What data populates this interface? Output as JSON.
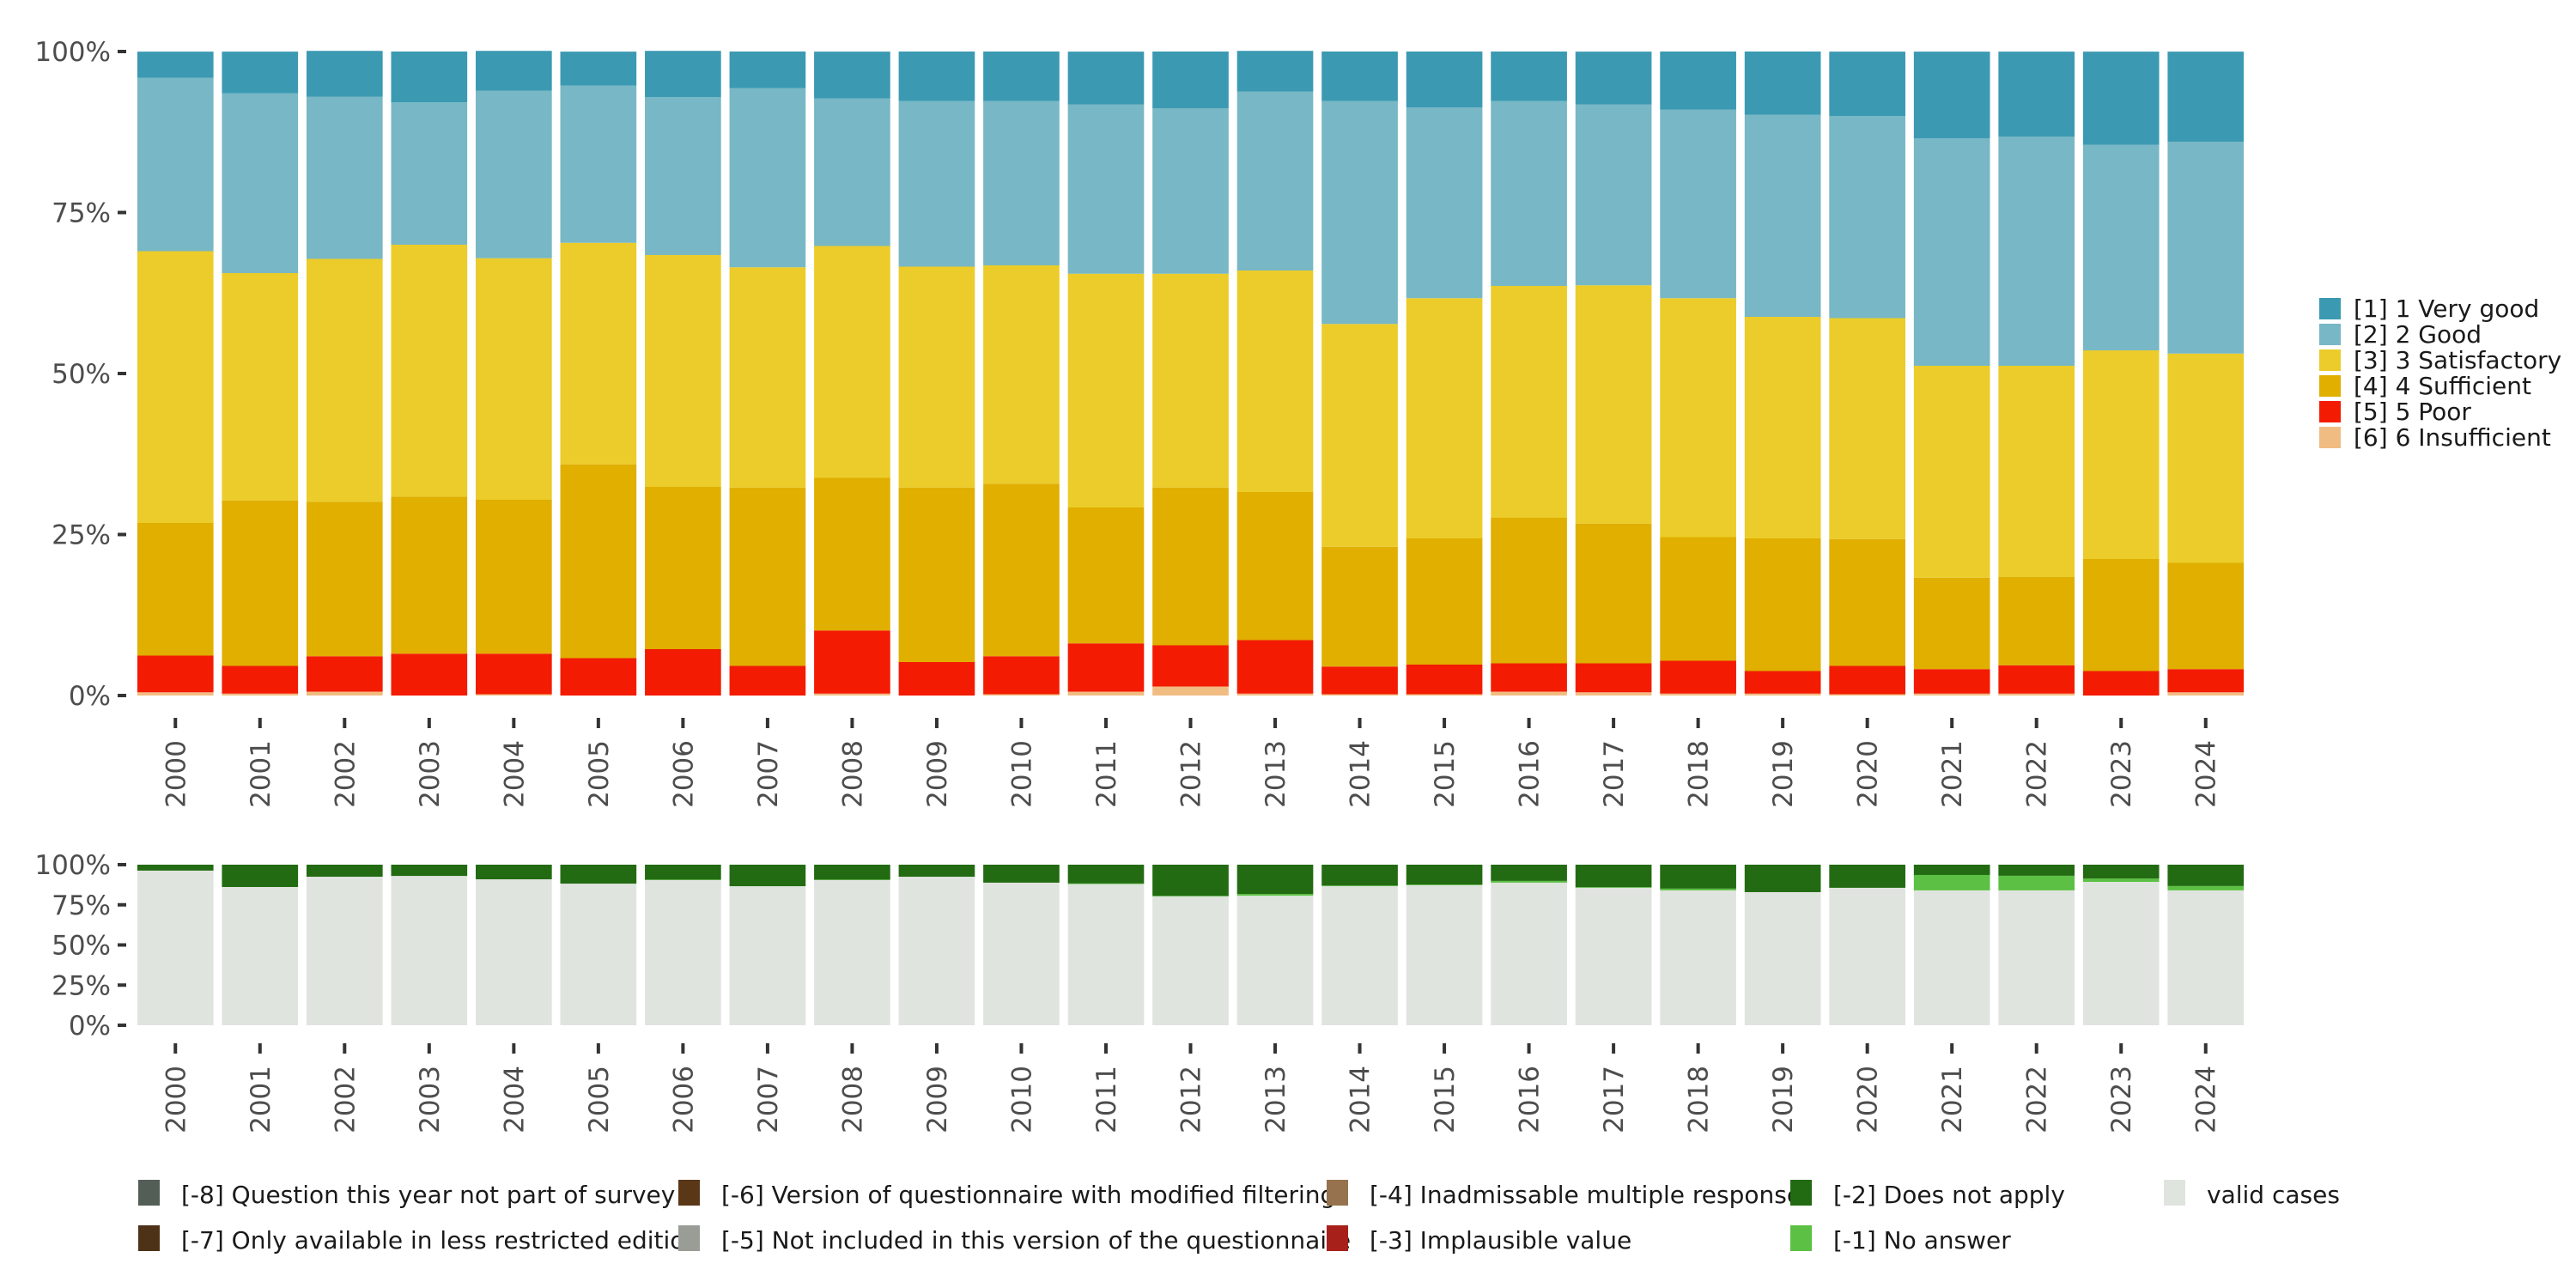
{
  "chart_data": [
    {
      "type": "bar",
      "stacked": true,
      "title": "",
      "xlabel": "",
      "ylabel": "",
      "ylim": [
        0,
        100
      ],
      "yticks": [
        "0%",
        "25%",
        "50%",
        "75%",
        "100%"
      ],
      "ytick_values": [
        0,
        25,
        50,
        75,
        100
      ],
      "categories": [
        "2000",
        "2001",
        "2002",
        "2003",
        "2004",
        "2005",
        "2006",
        "2007",
        "2008",
        "2009",
        "2010",
        "2011",
        "2012",
        "2013",
        "2014",
        "2015",
        "2016",
        "2017",
        "2018",
        "2019",
        "2020",
        "2021",
        "2022",
        "2023",
        "2024"
      ],
      "legend_position": "right",
      "series": [
        {
          "name": "[6] 6 Insufficient",
          "color": "#F1BC82",
          "values": [
            0.5,
            0.3,
            0.6,
            0,
            0.2,
            0,
            0,
            0,
            0.3,
            0,
            0.2,
            0.6,
            1.4,
            0.3,
            0.2,
            0.2,
            0.6,
            0.5,
            0.3,
            0.3,
            0.2,
            0.3,
            0.3,
            0,
            0.5
          ]
        },
        {
          "name": "[5] 5 Poor",
          "color": "#F31C03",
          "values": [
            5.7,
            4.3,
            5.5,
            6.5,
            6.3,
            5.8,
            7.2,
            4.6,
            9.8,
            5.2,
            5.9,
            7.5,
            6.4,
            8.3,
            4.3,
            4.6,
            4.4,
            4.5,
            5.1,
            3.5,
            4.4,
            3.8,
            4.4,
            3.8,
            3.6
          ]
        },
        {
          "name": "[4] 4 Sufficient",
          "color": "#E0AF00",
          "values": [
            20.6,
            25.7,
            24.0,
            24.4,
            23.9,
            30.1,
            25.2,
            27.7,
            23.7,
            27.1,
            26.8,
            21.1,
            24.5,
            23.0,
            18.6,
            19.6,
            22.6,
            21.7,
            19.2,
            20.6,
            19.7,
            14.2,
            13.7,
            17.4,
            16.5
          ]
        },
        {
          "name": "[3] 3 Satisfactory",
          "color": "#EBCC2A",
          "values": [
            42.2,
            35.3,
            37.7,
            39.1,
            37.5,
            34.4,
            36.0,
            34.2,
            36.0,
            34.3,
            33.9,
            36.3,
            33.2,
            34.4,
            34.6,
            37.3,
            36.0,
            37.0,
            37.1,
            34.4,
            34.3,
            32.9,
            32.8,
            32.4,
            32.5
          ]
        },
        {
          "name": "[2] 2 Good",
          "color": "#78B7C5",
          "values": [
            26.9,
            27.9,
            25.2,
            22.1,
            26.0,
            24.4,
            24.5,
            27.8,
            22.9,
            25.7,
            25.5,
            26.3,
            25.7,
            27.8,
            34.6,
            29.6,
            28.7,
            28.1,
            29.3,
            31.4,
            31.4,
            35.3,
            35.6,
            31.9,
            32.9
          ]
        },
        {
          "name": "[1] 1 Very good",
          "color": "#3B9AB2",
          "values": [
            4.0,
            6.4,
            7.1,
            7.9,
            6.2,
            5.2,
            7.2,
            5.7,
            7.2,
            7.7,
            7.7,
            8.1,
            8.8,
            6.3,
            7.7,
            8.7,
            7.7,
            8.1,
            9.0,
            9.8,
            9.9,
            13.4,
            13.1,
            14.4,
            13.9
          ]
        }
      ],
      "legend": [
        {
          "label": "[1] 1 Very good",
          "color": "#3B9AB2"
        },
        {
          "label": "[2] 2 Good",
          "color": "#78B7C5"
        },
        {
          "label": "[3] 3 Satisfactory",
          "color": "#EBCC2A"
        },
        {
          "label": "[4] 4 Sufficient",
          "color": "#E0AF00"
        },
        {
          "label": "[5] 5 Poor",
          "color": "#F31C03"
        },
        {
          "label": "[6] 6 Insufficient",
          "color": "#F1BC82"
        }
      ]
    },
    {
      "type": "bar",
      "stacked": true,
      "title": "",
      "xlabel": "",
      "ylabel": "",
      "ylim": [
        0,
        100
      ],
      "yticks": [
        "0%",
        "25%",
        "50%",
        "75%",
        "100%"
      ],
      "ytick_values": [
        0,
        25,
        50,
        75,
        100
      ],
      "categories": [
        "2000",
        "2001",
        "2002",
        "2003",
        "2004",
        "2005",
        "2006",
        "2007",
        "2008",
        "2009",
        "2010",
        "2011",
        "2012",
        "2013",
        "2014",
        "2015",
        "2016",
        "2017",
        "2018",
        "2019",
        "2020",
        "2021",
        "2022",
        "2023",
        "2024"
      ],
      "legend_position": "bottom",
      "series": [
        {
          "name": "valid cases",
          "color": "#E0E4DF",
          "values": [
            96.3,
            86.1,
            92.5,
            93.0,
            90.9,
            88.2,
            90.4,
            86.6,
            90.4,
            92.5,
            88.8,
            87.9,
            80.2,
            80.7,
            86.6,
            87.2,
            88.8,
            85.6,
            84.0,
            82.9,
            85.6,
            84.0,
            84.0,
            89.3,
            84.0
          ]
        },
        {
          "name": "[-1] No answer",
          "color": "#5BC043",
          "values": [
            0,
            0,
            0,
            0,
            0,
            0,
            0.3,
            0,
            0.3,
            0,
            0,
            0.4,
            0.4,
            1.1,
            0.4,
            0.4,
            1.1,
            0.4,
            1.1,
            0,
            0,
            9.6,
            9.1,
            2.1,
            2.7
          ]
        },
        {
          "name": "[-2] Does not apply",
          "color": "#236B12",
          "values": [
            3.7,
            13.9,
            7.5,
            7.0,
            9.1,
            11.8,
            9.3,
            13.4,
            9.3,
            7.5,
            11.2,
            11.7,
            19.4,
            18.2,
            13.0,
            12.4,
            10.1,
            14.0,
            14.9,
            17.1,
            14.4,
            6.4,
            6.9,
            8.6,
            13.3
          ]
        }
      ],
      "legend": [
        {
          "label": "[-8] Question this year not part of survey",
          "color": "#535E57"
        },
        {
          "label": "[-7] Only available in less restricted edition",
          "color": "#4E3218"
        },
        {
          "label": "[-6] Version of questionnaire with modified filtering",
          "color": "#5A3716"
        },
        {
          "label": "[-5] Not included in this version of the questionnaire",
          "color": "#999D96"
        },
        {
          "label": "[-4] Inadmissable multiple response",
          "color": "#96724E"
        },
        {
          "label": "[-3] Implausible value",
          "color": "#A8201A"
        },
        {
          "label": "[-2] Does not apply",
          "color": "#236B12"
        },
        {
          "label": "[-1] No answer",
          "color": "#5BC043"
        },
        {
          "label": "valid cases",
          "color": "#E0E4DF"
        }
      ]
    }
  ]
}
